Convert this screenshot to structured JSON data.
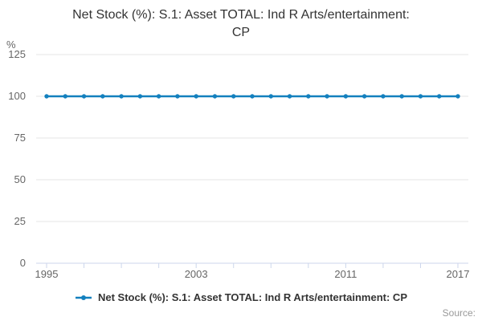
{
  "header": {
    "title_lines": [
      "Net Stock (%): S.1: Asset TOTAL: Ind R Arts/entertainment:",
      "CP"
    ]
  },
  "axes": {
    "y_unit_label": "%",
    "y_tick_labels": [
      "0",
      "25",
      "50",
      "75",
      "100",
      "125"
    ],
    "x_tick_labels": [
      "1995",
      "2003",
      "2011",
      "2017"
    ]
  },
  "legend": {
    "label": "Net Stock (%): S.1: Asset TOTAL: Ind R Arts/entertainment: CP"
  },
  "footer": {
    "source_label": "Source:"
  },
  "colors": {
    "series": "#1380be",
    "gridline": "#e6e6e6",
    "axis_line": "#ccd6eb",
    "tick_text": "#666666",
    "title_text": "#333333",
    "legend_text": "#333333",
    "source_text": "#999999"
  },
  "chart_data": {
    "type": "line",
    "title": "Net Stock (%): S.1: Asset TOTAL: Ind R Arts/entertainment: CP",
    "x": [
      1995,
      1996,
      1997,
      1998,
      1999,
      2000,
      2001,
      2002,
      2003,
      2004,
      2005,
      2006,
      2007,
      2008,
      2009,
      2010,
      2011,
      2012,
      2013,
      2014,
      2015,
      2016,
      2017
    ],
    "series": [
      {
        "name": "Net Stock (%): S.1: Asset TOTAL: Ind R Arts/entertainment: CP",
        "values": [
          100,
          100,
          100,
          100,
          100,
          100,
          100,
          100,
          100,
          100,
          100,
          100,
          100,
          100,
          100,
          100,
          100,
          100,
          100,
          100,
          100,
          100,
          100
        ]
      }
    ],
    "xlabel": "",
    "ylabel": "%",
    "ylim": [
      0,
      125
    ],
    "yticks": [
      0,
      25,
      50,
      75,
      100,
      125
    ],
    "xticks_labeled": [
      1995,
      2003,
      2011,
      2017
    ],
    "xticks_minor": [
      1995,
      1997,
      1999,
      2001,
      2003,
      2005,
      2007,
      2009,
      2011,
      2013,
      2015,
      2017
    ],
    "grid": true,
    "legend_position": "bottom",
    "marker": "circle"
  }
}
